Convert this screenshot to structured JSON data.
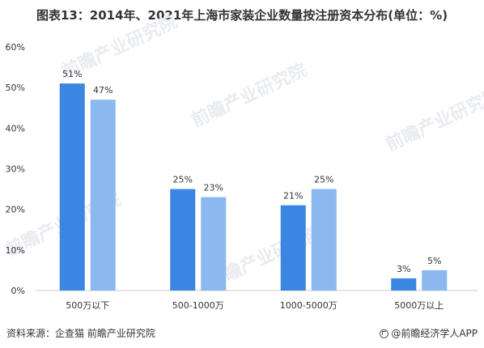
{
  "header": {
    "title": "图表13：2014年、2021年上海市家装企业数量按注册资本分布(单位：%)"
  },
  "footer": {
    "source": "资料来源：企查猫 前瞻产业研究院",
    "brand": "@前瞻经济学人APP",
    "brand_icon": "qianzhan-logo-icon"
  },
  "colors": {
    "series_2014": "#3a86e0",
    "series_2021": "#8ab8ef",
    "axis": "#cccccc",
    "grid": "#eeeeee",
    "text": "#333333"
  },
  "chart_data": {
    "type": "bar",
    "title": "图表13：2014年、2021年上海市家装企业数量按注册资本分布(单位：%)",
    "categories": [
      "500万以下",
      "500-1000万",
      "1000-5000万",
      "5000万以上"
    ],
    "series": [
      {
        "values": [
          51,
          25,
          21,
          3
        ],
        "labels": [
          "51%",
          "25%",
          "21%",
          "3%"
        ]
      },
      {
        "values": [
          47,
          23,
          25,
          5
        ],
        "labels": [
          "47%",
          "23%",
          "25%",
          "5%"
        ]
      }
    ],
    "yticks": [
      "0%",
      "10%",
      "20%",
      "30%",
      "40%",
      "50%",
      "60%"
    ],
    "ylim": [
      0,
      60
    ],
    "grid": false,
    "legend": "none"
  }
}
